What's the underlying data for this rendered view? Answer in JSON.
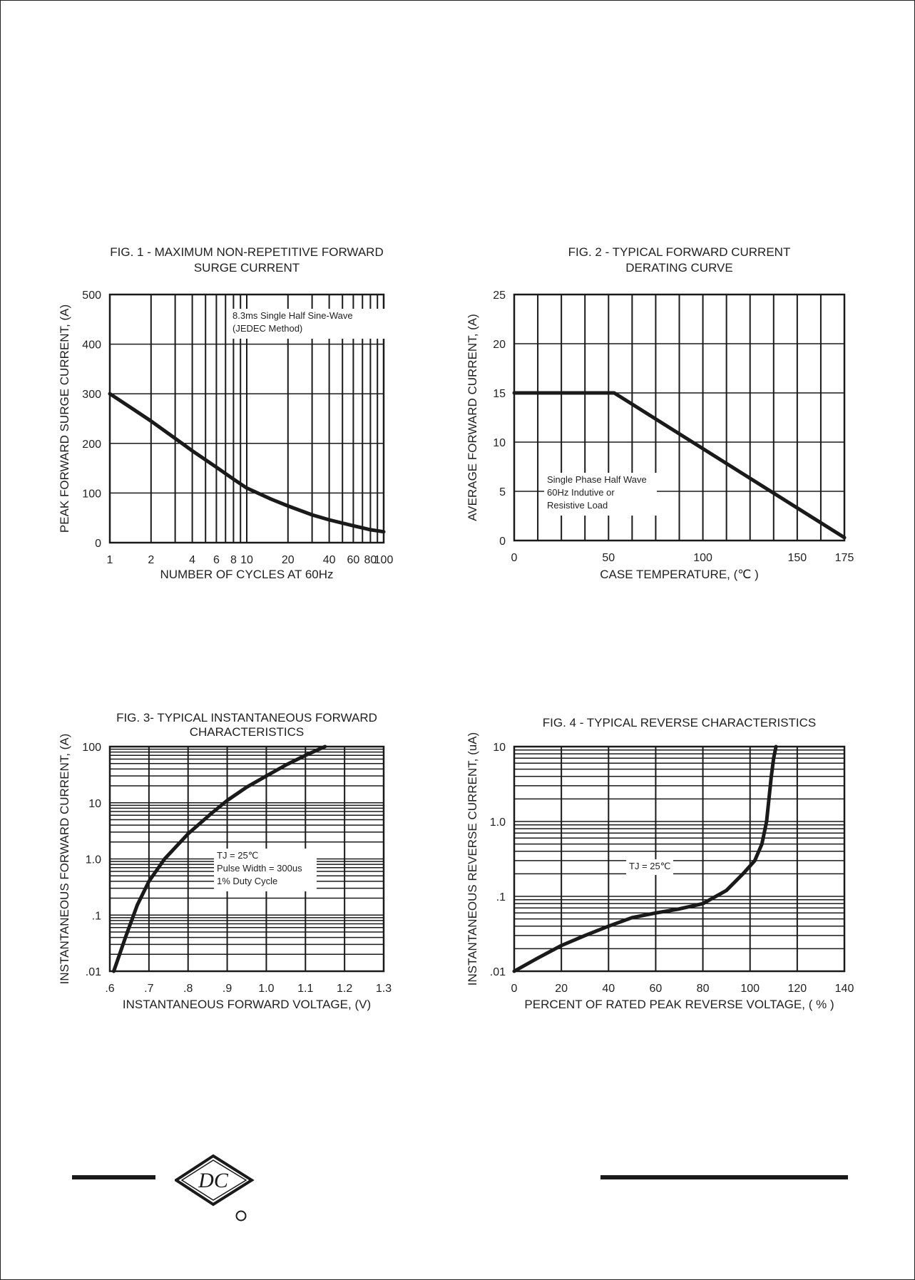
{
  "chart_data": [
    {
      "type": "line",
      "title": "FIG. 1 - MAXIMUM NON-REPETITIVE FORWARD",
      "title_line2": "SURGE CURRENT",
      "xlabel": "NUMBER OF CYCLES AT 60Hz",
      "ylabel": "PEAK FORWARD SURGE CURRENT, (A)",
      "xscale": "log",
      "xlim": [
        1,
        100
      ],
      "ylim": [
        0,
        500
      ],
      "x_ticks": [
        1,
        2,
        4,
        6,
        8,
        10,
        20,
        40,
        60,
        80,
        100
      ],
      "x_tick_labels": [
        "1",
        "2",
        "4",
        "6",
        "8",
        "10",
        "20",
        "40",
        "60",
        "80",
        "100"
      ],
      "y_ticks": [
        0,
        100,
        200,
        300,
        400,
        500
      ],
      "y_tick_labels": [
        "0",
        "100",
        "200",
        "300",
        "400",
        "500"
      ],
      "grid": true,
      "annotation": [
        "8.3ms Single Half Sine-Wave",
        "(JEDEC Method)"
      ],
      "annotation_position": "top-right",
      "series": [
        {
          "x": [
            1,
            1.5,
            2,
            3,
            4,
            6,
            8,
            10,
            15,
            20,
            30,
            40,
            60,
            80,
            100
          ],
          "y": [
            300,
            268,
            245,
            210,
            185,
            152,
            128,
            110,
            88,
            74,
            56,
            46,
            34,
            26,
            22
          ]
        }
      ]
    },
    {
      "type": "line",
      "title": "FIG. 2 - TYPICAL FORWARD CURRENT",
      "title_line2": "DERATING CURVE",
      "xlabel": "CASE TEMPERATURE, (℃ )",
      "ylabel": "AVERAGE FORWARD  CURRENT, (A)",
      "xscale": "linear",
      "xlim": [
        0,
        175
      ],
      "ylim": [
        0,
        25
      ],
      "x_ticks": [
        0,
        50,
        100,
        150,
        175
      ],
      "x_tick_labels": [
        "0",
        "50",
        "100",
        "150",
        "175"
      ],
      "y_ticks": [
        0,
        5,
        10,
        15,
        20,
        25
      ],
      "y_tick_labels": [
        "0",
        "5",
        "10",
        "15",
        "20",
        "25"
      ],
      "grid": true,
      "annotation": [
        "Single Phase Half Wave",
        "60Hz Indutive or",
        "Resistive Load"
      ],
      "annotation_position": "bottom-left",
      "series": [
        {
          "x": [
            0,
            53,
            175
          ],
          "y": [
            15,
            15,
            0.3
          ]
        }
      ]
    },
    {
      "type": "line",
      "title": "FIG. 3- TYPICAL INSTANTANEOUS FORWARD",
      "title_line2": "CHARACTERISTICS",
      "xlabel": "INSTANTANEOUS FORWARD VOLTAGE, (V)",
      "ylabel": "INSTANTANEOUS FORWARD CURRENT, (A)",
      "xscale": "linear",
      "yscale": "log",
      "xlim": [
        0.6,
        1.3
      ],
      "ylim": [
        0.01,
        100
      ],
      "x_ticks": [
        0.6,
        0.7,
        0.8,
        0.9,
        1.0,
        1.1,
        1.2,
        1.3
      ],
      "x_tick_labels": [
        ".6",
        ".7",
        ".8",
        ".9",
        "1.0",
        "1.1",
        "1.2",
        "1.3"
      ],
      "y_ticks": [
        0.01,
        0.1,
        1,
        10,
        100
      ],
      "y_tick_labels": [
        ".01",
        ".1",
        "1.0",
        "10",
        "100"
      ],
      "grid": true,
      "annotation": [
        "TJ = 25℃",
        "Pulse Width = 300us",
        "1% Duty Cycle"
      ],
      "annotation_position": "bottom-right",
      "series": [
        {
          "x": [
            0.61,
            0.64,
            0.67,
            0.7,
            0.74,
            0.8,
            0.86,
            0.9,
            0.95,
            1.0,
            1.05,
            1.1,
            1.15
          ],
          "y": [
            0.01,
            0.04,
            0.15,
            0.4,
            1.0,
            2.8,
            6.5,
            11,
            19,
            30,
            47,
            70,
            100
          ]
        }
      ]
    },
    {
      "type": "line",
      "title": "FIG. 4 - TYPICAL REVERSE CHARACTERISTICS",
      "xlabel": "PERCENT OF RATED PEAK REVERSE VOLTAGE, ( % )",
      "ylabel": "INSTANTANEOUS REVERSE CURRENT, (uA)",
      "xscale": "linear",
      "yscale": "log",
      "xlim": [
        0,
        140
      ],
      "ylim": [
        0.01,
        10
      ],
      "x_ticks": [
        0,
        20,
        40,
        60,
        80,
        100,
        120,
        140
      ],
      "x_tick_labels": [
        "0",
        "20",
        "40",
        "60",
        "80",
        "100",
        "120",
        "140"
      ],
      "y_ticks": [
        0.01,
        0.1,
        1,
        10
      ],
      "y_tick_labels": [
        ".01",
        ".1",
        "1.0",
        "10"
      ],
      "grid": true,
      "annotation": [
        "TJ = 25℃"
      ],
      "annotation_position": "center-right",
      "series": [
        {
          "x": [
            0,
            10,
            20,
            30,
            40,
            50,
            60,
            70,
            80,
            90,
            97,
            102,
            105,
            107,
            108,
            109,
            110,
            111
          ],
          "y": [
            0.01,
            0.015,
            0.022,
            0.03,
            0.04,
            0.052,
            0.06,
            0.068,
            0.08,
            0.12,
            0.2,
            0.3,
            0.5,
            1.0,
            2.0,
            4.0,
            7.0,
            10
          ]
        }
      ]
    }
  ],
  "logo": {
    "text": "DC"
  },
  "colors": {
    "ink": "#1a1a1a",
    "background": "#ffffff"
  }
}
